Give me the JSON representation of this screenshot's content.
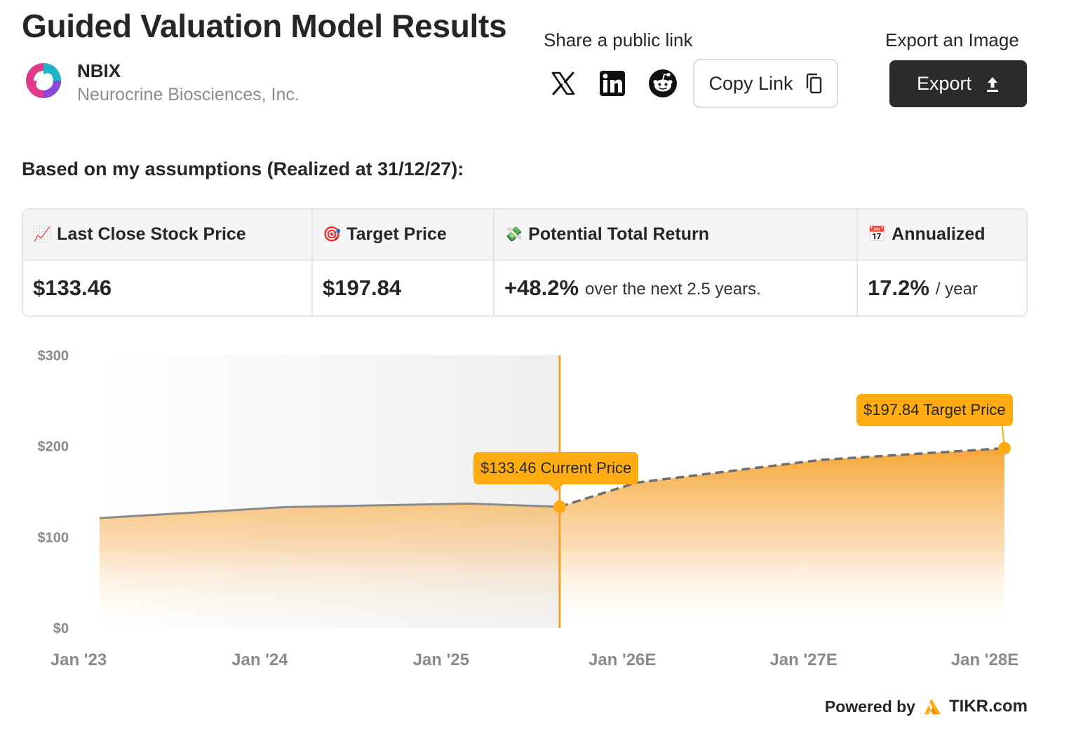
{
  "page": {
    "title": "Guided Valuation Model Results"
  },
  "company": {
    "ticker": "NBIX",
    "name": "Neurocrine Biosciences, Inc."
  },
  "share": {
    "label": "Share a public link",
    "icons": [
      "x-icon",
      "linkedin-icon",
      "reddit-icon"
    ],
    "copy_link_label": "Copy Link"
  },
  "export": {
    "label": "Export an Image",
    "button_label": "Export"
  },
  "assumptions": {
    "heading": "Based on my assumptions (Realized at 31/12/27):"
  },
  "results": {
    "headers": [
      {
        "emoji": "📈",
        "label": "Last Close Stock Price"
      },
      {
        "emoji": "🎯",
        "label": "Target Price"
      },
      {
        "emoji": "💸",
        "label": "Potential Total Return"
      },
      {
        "emoji": "📅",
        "label": "Annualized"
      }
    ],
    "last_close": "$133.46",
    "target": "$197.84",
    "total_return": "+48.2%",
    "total_return_note": "over the next 2.5 years.",
    "annualized": "17.2%",
    "annualized_note": "/ year"
  },
  "chart_data": {
    "type": "area",
    "y_ticks": [
      "$300",
      "$200",
      "$100",
      "$0"
    ],
    "ylim": [
      0,
      300
    ],
    "x_ticks": [
      "Jan '23",
      "Jan '24",
      "Jan '25",
      "Jan '26E",
      "Jan '27E",
      "Jan '28E"
    ],
    "historical": {
      "x": [
        "2023-01",
        "2024-01",
        "2025-01",
        "2025-07"
      ],
      "y": [
        121,
        133,
        137,
        133.46
      ]
    },
    "projected": {
      "x": [
        "2025-07",
        "2025-12",
        "2026-12",
        "2027-12"
      ],
      "y": [
        133.46,
        160,
        185,
        197.84
      ]
    },
    "current_label": "$133.46 Current Price",
    "target_label": "$197.84 Target Price",
    "colors": {
      "accent": "#ffab12",
      "line": "#8a8a8a",
      "divider": "#f2a22a"
    }
  },
  "footer": {
    "powered_by": "Powered by",
    "brand": "TIKR.com"
  }
}
